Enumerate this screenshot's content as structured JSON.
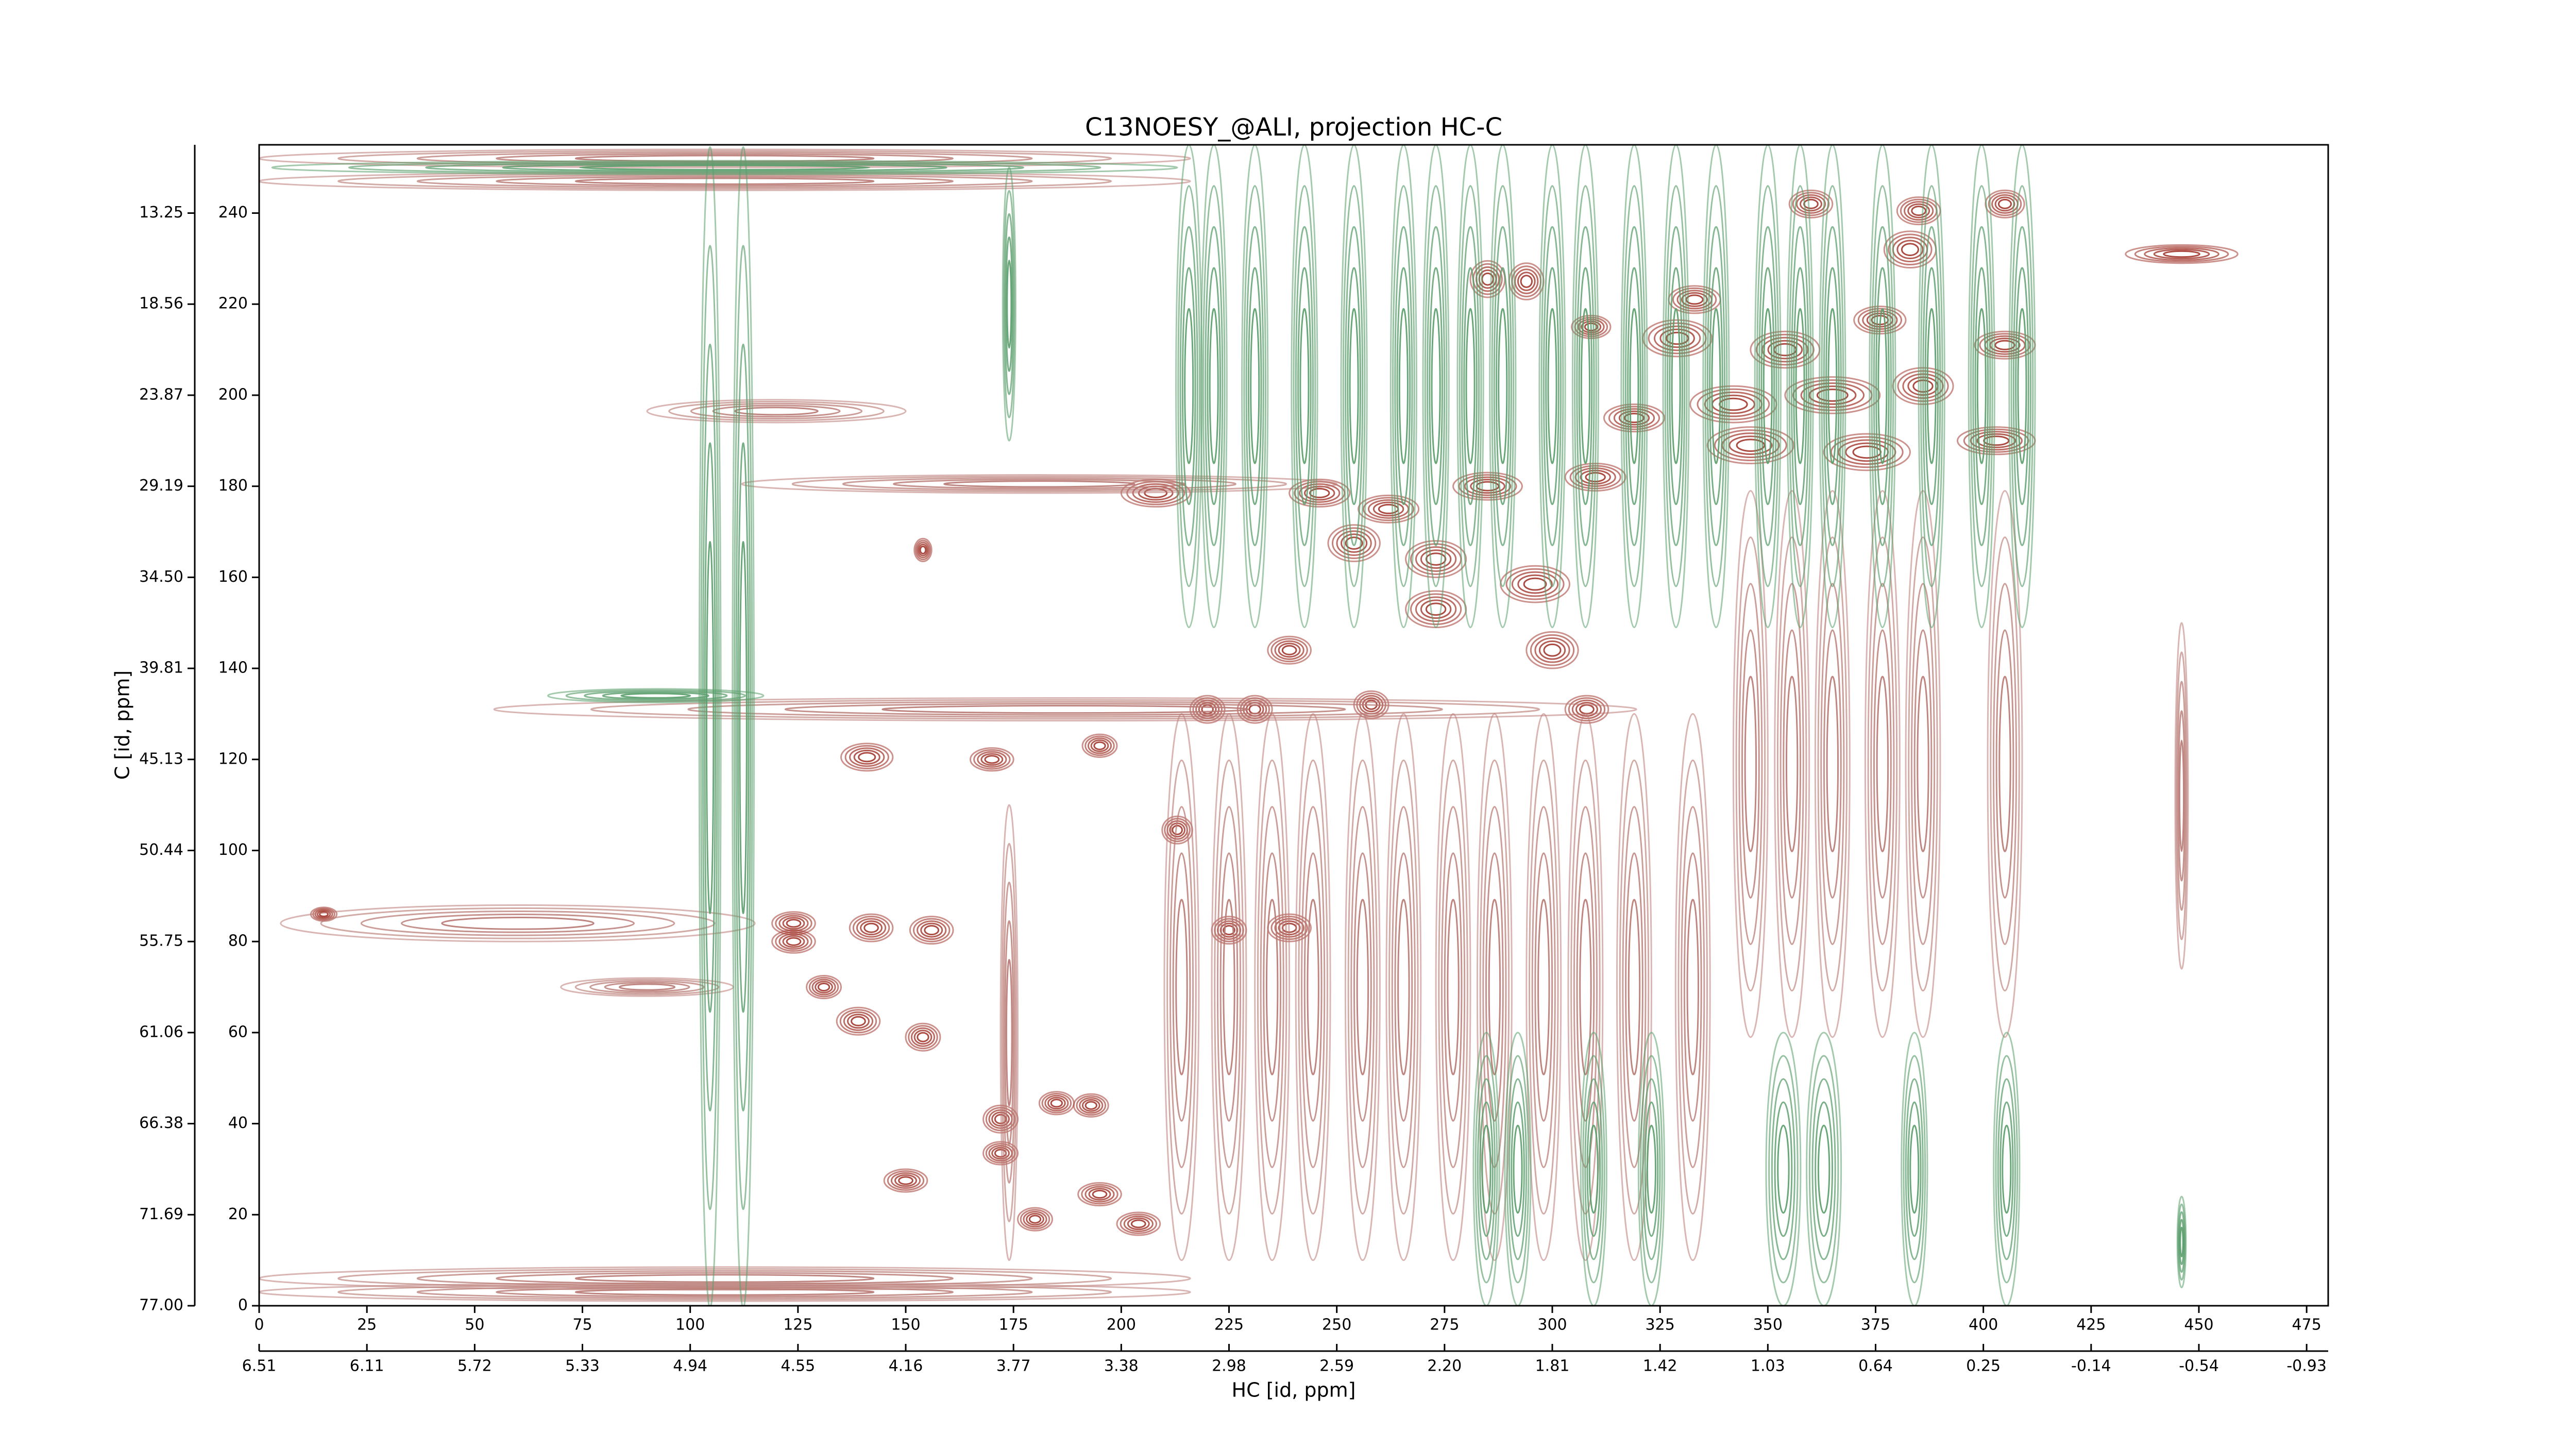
{
  "chart_data": {
    "type": "contour",
    "title": "C13NOESY_@ALI, projection HC-C",
    "xlabel": "HC [id, ppm]",
    "ylabel": "C [id, ppm]",
    "xlim": [
      0,
      480
    ],
    "ylim": [
      0,
      255
    ],
    "xticks": [
      0,
      25,
      50,
      75,
      100,
      125,
      150,
      175,
      200,
      225,
      250,
      275,
      300,
      325,
      350,
      375,
      400,
      425,
      450,
      475
    ],
    "yticks": [
      0,
      20,
      40,
      60,
      80,
      100,
      120,
      140,
      160,
      180,
      200,
      220,
      240
    ],
    "x2ticks": [
      {
        "value": 0,
        "label": "6.51"
      },
      {
        "value": 25,
        "label": "6.11"
      },
      {
        "value": 50,
        "label": "5.72"
      },
      {
        "value": 75,
        "label": "5.33"
      },
      {
        "value": 100,
        "label": "4.94"
      },
      {
        "value": 125,
        "label": "4.55"
      },
      {
        "value": 150,
        "label": "4.16"
      },
      {
        "value": 175,
        "label": "3.77"
      },
      {
        "value": 200,
        "label": "3.38"
      },
      {
        "value": 225,
        "label": "2.98"
      },
      {
        "value": 250,
        "label": "2.59"
      },
      {
        "value": 275,
        "label": "2.20"
      },
      {
        "value": 300,
        "label": "1.81"
      },
      {
        "value": 325,
        "label": "1.42"
      },
      {
        "value": 350,
        "label": "1.03"
      },
      {
        "value": 375,
        "label": "0.64"
      },
      {
        "value": 400,
        "label": "0.25"
      },
      {
        "value": 425,
        "label": "-0.14"
      },
      {
        "value": 450,
        "label": "-0.54"
      },
      {
        "value": 475,
        "label": "-0.93"
      }
    ],
    "y2ticks": [
      {
        "value": 0,
        "label": "77.00"
      },
      {
        "value": 20,
        "label": "71.69"
      },
      {
        "value": 40,
        "label": "66.38"
      },
      {
        "value": 60,
        "label": "61.06"
      },
      {
        "value": 80,
        "label": "55.75"
      },
      {
        "value": 100,
        "label": "50.44"
      },
      {
        "value": 120,
        "label": "45.13"
      },
      {
        "value": 140,
        "label": "39.81"
      },
      {
        "value": 160,
        "label": "34.50"
      },
      {
        "value": 180,
        "label": "29.19"
      },
      {
        "value": 200,
        "label": "23.87"
      },
      {
        "value": 220,
        "label": "18.56"
      },
      {
        "value": 240,
        "label": "13.25"
      }
    ],
    "levels": 5,
    "contour_sets": [
      {
        "color": "#a3392f",
        "x": [
          360,
          385,
          405,
          383,
          285,
          294,
          309,
          333,
          329,
          354,
          376,
          405,
          342,
          365,
          386,
          319,
          346,
          373,
          403,
          310,
          285,
          246,
          208,
          262,
          254,
          273,
          296,
          273,
          300,
          239,
          220,
          231,
          258,
          308,
          154,
          213,
          225,
          239,
          15,
          124,
          124,
          142,
          156,
          131,
          154,
          139,
          172,
          185,
          193,
          180,
          172,
          150,
          195,
          204,
          446,
          141,
          170,
          195
        ],
        "y": [
          242,
          240.5,
          242,
          232,
          225.5,
          225,
          215,
          221,
          212.5,
          210,
          216.5,
          211,
          198,
          200,
          202,
          195,
          189,
          187.5,
          190,
          182,
          180,
          178.5,
          178.5,
          175,
          167.5,
          164,
          158.5,
          153,
          144,
          144,
          131,
          131,
          132,
          131,
          166,
          104.5,
          82.5,
          83,
          86,
          84,
          80,
          83,
          82.5,
          70,
          59,
          62.5,
          41,
          44.5,
          44,
          19,
          33.5,
          27.5,
          24.5,
          18,
          231,
          120.5,
          120,
          123
        ],
        "x_width": [
          10,
          10,
          9,
          12,
          8,
          8,
          9,
          12,
          16,
          16,
          12,
          14,
          20,
          22,
          14,
          14,
          20,
          20,
          18,
          14,
          16,
          14,
          16,
          14,
          12,
          14,
          16,
          14,
          12,
          10,
          8,
          8,
          8,
          10,
          4,
          7,
          8,
          10,
          6,
          10,
          10,
          10,
          10,
          8,
          8,
          10,
          8,
          8,
          8,
          8,
          8,
          10,
          10,
          10,
          26,
          12,
          10,
          8
        ],
        "y_width": [
          6,
          6,
          6,
          8,
          8,
          8,
          5,
          6,
          8,
          8,
          6,
          6,
          8,
          8,
          8,
          6,
          8,
          8,
          6,
          6,
          6,
          6,
          6,
          6,
          8,
          8,
          8,
          8,
          8,
          6,
          6,
          6,
          6,
          6,
          5,
          6,
          6,
          6,
          3,
          5,
          5,
          6,
          6,
          5,
          6,
          6,
          6,
          5,
          5,
          5,
          5,
          5,
          5,
          5,
          4,
          6,
          5,
          5
        ]
      },
      {
        "color": "#b97a74",
        "x": [
          181,
          187,
          108,
          108,
          108,
          108,
          60,
          120,
          90,
          214,
          225,
          235,
          244.5,
          256,
          265.5,
          277,
          286.6,
          298,
          307.7,
          319,
          332.6,
          346,
          355.6,
          365,
          376.6,
          386,
          405,
          446,
          174
        ],
        "y": [
          180.5,
          131,
          252,
          247,
          6,
          3,
          84,
          196.5,
          70,
          70,
          70,
          70,
          70,
          70,
          70,
          70,
          70,
          70,
          70,
          70,
          70,
          119,
          119,
          119,
          119,
          119,
          119,
          112,
          60
        ],
        "x_width": [
          138,
          265,
          216,
          216,
          216,
          216,
          110,
          60,
          40,
          8,
          8,
          8,
          8,
          8,
          8,
          8,
          8,
          8,
          8,
          8,
          8,
          8,
          8,
          8,
          8,
          8,
          8,
          3,
          4
        ],
        "y_width": [
          4,
          5,
          4,
          4,
          5,
          4,
          8,
          5,
          4,
          120,
          120,
          120,
          120,
          120,
          120,
          120,
          120,
          120,
          120,
          120,
          120,
          120,
          120,
          120,
          120,
          120,
          120,
          76,
          100
        ]
      },
      {
        "color": "#5a9e6c",
        "x": [
          215.7,
          221.5,
          231,
          242.5,
          254,
          265.5,
          273,
          281,
          288.5,
          300,
          307.7,
          319,
          328.7,
          338,
          350,
          357.5,
          365,
          376.6,
          388,
          399.6,
          409,
          104.6,
          112.3,
          284.7,
          292,
          309.6,
          323,
          353.6,
          363,
          384,
          405.4,
          92,
          174,
          446,
          108
        ],
        "y": [
          202,
          202,
          202,
          202,
          202,
          202,
          202,
          202,
          202,
          202,
          202,
          202,
          202,
          202,
          202,
          202,
          202,
          202,
          202,
          202,
          202,
          127,
          127,
          30,
          30,
          30,
          30,
          30,
          30,
          30,
          30,
          134,
          220,
          14,
          250
        ],
        "x_width": [
          6,
          6,
          6,
          6,
          6,
          6,
          6,
          6,
          6,
          6,
          6,
          6,
          6,
          6,
          6,
          6,
          6,
          6,
          6,
          6,
          6,
          5,
          5,
          6,
          6,
          6,
          6,
          8,
          8,
          6,
          6,
          50,
          3,
          2,
          210
        ],
        "y_width": [
          106,
          106,
          106,
          106,
          106,
          106,
          106,
          106,
          106,
          106,
          106,
          106,
          106,
          106,
          106,
          106,
          106,
          106,
          106,
          106,
          106,
          255,
          255,
          60,
          60,
          60,
          60,
          60,
          60,
          60,
          60,
          3,
          60,
          20,
          3
        ]
      }
    ]
  }
}
